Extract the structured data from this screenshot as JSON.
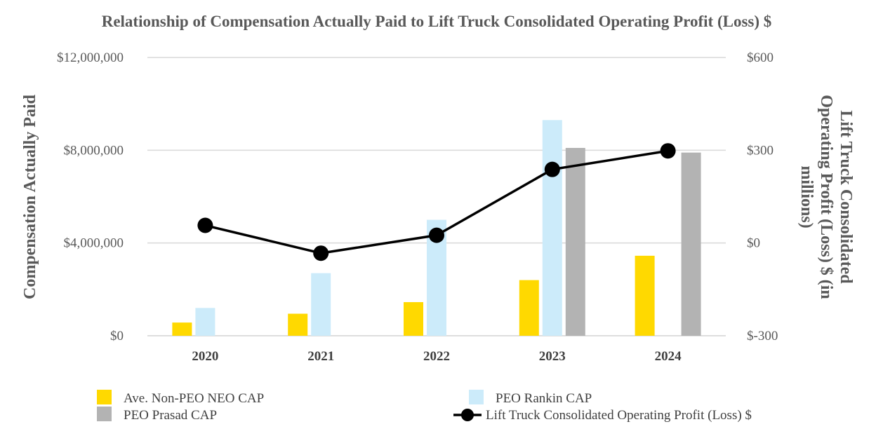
{
  "chart_data": {
    "type": "bar+line",
    "title": "Relationship of Compensation Actually Paid to Lift Truck Consolidated Operating Profit (Loss) $",
    "categories": [
      "2020",
      "2021",
      "2022",
      "2023",
      "2024"
    ],
    "y_left": {
      "label": "Compensation Actually Paid",
      "lim": [
        0,
        12000000
      ],
      "ticks": [
        0,
        4000000,
        8000000,
        12000000
      ],
      "tick_labels": [
        "$0",
        "$4,000,000",
        "$8,000,000",
        "$12,000,000"
      ]
    },
    "y_right": {
      "label_lines": [
        "Lift Truck Consolidated",
        "Operating Profit (Loss) $ (in",
        "millions)"
      ],
      "lim": [
        -300,
        600
      ],
      "ticks": [
        -300,
        0,
        300,
        600
      ],
      "tick_labels": [
        "$-300",
        "$0",
        "$300",
        "$600"
      ]
    },
    "series": [
      {
        "name": "Ave. Non-PEO NEO CAP",
        "kind": "bar",
        "axis": "left",
        "color": "#FFD900",
        "values": [
          570000,
          950000,
          1450000,
          2400000,
          3450000
        ]
      },
      {
        "name": "PEO Rankin CAP",
        "kind": "bar",
        "axis": "left",
        "color": "#CCEBFA",
        "values": [
          1200000,
          2700000,
          5000000,
          9300000,
          null
        ]
      },
      {
        "name": "PEO Prasad CAP",
        "kind": "bar",
        "axis": "left",
        "color": "#B3B3B3",
        "values": [
          null,
          null,
          null,
          8100000,
          7900000
        ]
      },
      {
        "name": "Lift Truck Consolidated Operating Profit (Loss) $",
        "kind": "line",
        "axis": "right",
        "color": "#000000",
        "values": [
          57,
          -33,
          25,
          238,
          298
        ]
      }
    ],
    "legend": [
      {
        "name": "Ave. Non-PEO NEO CAP",
        "symbol": "square",
        "color": "#FFD900"
      },
      {
        "name": "PEO Rankin CAP",
        "symbol": "square",
        "color": "#CCEBFA"
      },
      {
        "name": "PEO Prasad CAP",
        "symbol": "square",
        "color": "#B3B3B3"
      },
      {
        "name": "Lift Truck Consolidated Operating Profit (Loss) $",
        "symbol": "line-marker",
        "color": "#000000"
      }
    ],
    "gridlines": true,
    "legend_position": "bottom"
  }
}
